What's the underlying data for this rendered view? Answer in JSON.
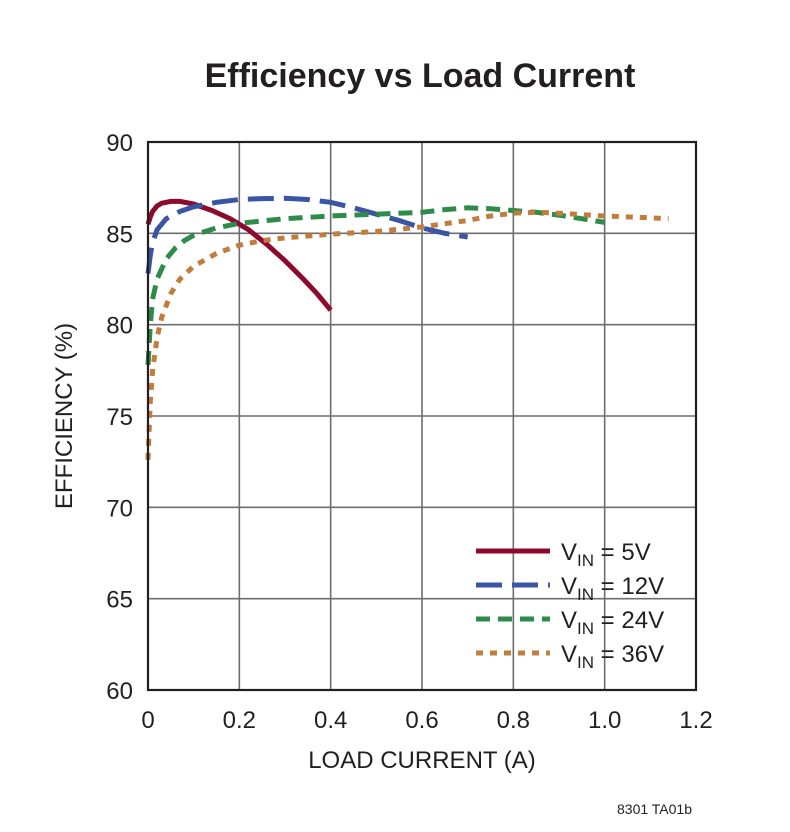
{
  "chart_data": {
    "type": "line",
    "title": "Efficiency vs Load Current",
    "xlabel": "LOAD CURRENT (A)",
    "ylabel": "EFFICIENCY (%)",
    "xlim": [
      0,
      1.2
    ],
    "ylim": [
      60,
      90
    ],
    "xticks": [
      0,
      0.2,
      0.4,
      0.6,
      0.8,
      1.0,
      1.2
    ],
    "xtick_labels": [
      "0",
      "0.2",
      "0.4",
      "0.6",
      "0.8",
      "1.0",
      "1.2"
    ],
    "yticks": [
      60,
      65,
      70,
      75,
      80,
      85,
      90
    ],
    "ytick_labels": [
      "60",
      "65",
      "70",
      "75",
      "80",
      "85",
      "90"
    ],
    "grid": true,
    "legend_position": "bottom-right",
    "series": [
      {
        "name": "VIN = 5V",
        "label_main": "V",
        "label_sub": "IN",
        "label_rest": " = 5V",
        "color": "#8b0a2e",
        "style": "solid",
        "x": [
          0.0,
          0.005,
          0.01,
          0.02,
          0.03,
          0.05,
          0.07,
          0.1,
          0.14,
          0.18,
          0.22,
          0.26,
          0.3,
          0.34,
          0.37,
          0.4
        ],
        "y": [
          85.5,
          85.9,
          86.2,
          86.5,
          86.65,
          86.75,
          86.75,
          86.6,
          86.25,
          85.8,
          85.2,
          84.4,
          83.5,
          82.5,
          81.7,
          80.8
        ]
      },
      {
        "name": "VIN = 12V",
        "label_main": "V",
        "label_sub": "IN",
        "label_rest": " = 12V",
        "color": "#3a55a4",
        "style": "longdash",
        "x": [
          0.0,
          0.005,
          0.01,
          0.02,
          0.04,
          0.07,
          0.1,
          0.15,
          0.2,
          0.25,
          0.3,
          0.35,
          0.4,
          0.45,
          0.5,
          0.55,
          0.6,
          0.65,
          0.7
        ],
        "y": [
          82.8,
          83.8,
          84.5,
          85.2,
          85.8,
          86.2,
          86.45,
          86.7,
          86.85,
          86.9,
          86.92,
          86.85,
          86.7,
          86.4,
          86.05,
          85.7,
          85.3,
          85.0,
          84.8
        ]
      },
      {
        "name": "VIN = 24V",
        "label_main": "V",
        "label_sub": "IN",
        "label_rest": " = 24V",
        "color": "#2e8b4a",
        "style": "dash",
        "x": [
          0.0,
          0.005,
          0.01,
          0.02,
          0.04,
          0.06,
          0.08,
          0.1,
          0.15,
          0.2,
          0.3,
          0.4,
          0.5,
          0.6,
          0.65,
          0.7,
          0.75,
          0.8,
          0.85,
          0.9,
          0.95,
          1.0
        ],
        "y": [
          77.8,
          80.0,
          81.4,
          82.5,
          83.6,
          84.2,
          84.6,
          84.9,
          85.3,
          85.55,
          85.8,
          85.95,
          86.05,
          86.15,
          86.3,
          86.4,
          86.35,
          86.25,
          86.15,
          86.0,
          85.8,
          85.6
        ]
      },
      {
        "name": "VIN = 36V",
        "label_main": "V",
        "label_sub": "IN",
        "label_rest": " = 36V",
        "color": "#c17d3c",
        "style": "dot",
        "x": [
          0.0,
          0.005,
          0.01,
          0.02,
          0.03,
          0.05,
          0.07,
          0.1,
          0.15,
          0.2,
          0.25,
          0.3,
          0.4,
          0.5,
          0.6,
          0.7,
          0.75,
          0.8,
          0.85,
          0.9,
          1.0,
          1.1,
          1.14
        ],
        "y": [
          72.6,
          75.8,
          77.5,
          79.3,
          80.4,
          81.7,
          82.5,
          83.2,
          83.9,
          84.35,
          84.6,
          84.75,
          84.95,
          85.1,
          85.35,
          85.7,
          85.95,
          86.1,
          86.15,
          86.1,
          85.95,
          85.85,
          85.8
        ]
      }
    ]
  },
  "footnote": "8301 TA01b"
}
